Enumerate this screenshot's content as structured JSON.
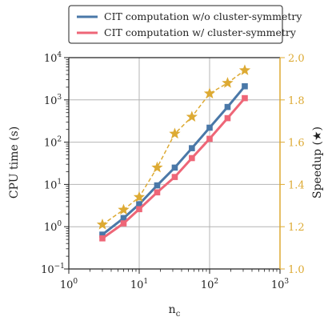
{
  "chart_data": {
    "type": "line",
    "x_label_base": "n",
    "x_label_sub": "c",
    "ylabel_left": "CPU time (s)",
    "ylabel_right": "Speedup (★)",
    "x_scale": "log",
    "y_left_scale": "log",
    "y_right_scale": "linear",
    "xlim": [
      1,
      1000
    ],
    "ylim_left": [
      0.1,
      10000
    ],
    "ylim_right": [
      1.0,
      2.0
    ],
    "x_ticks": [
      {
        "value": 1,
        "base": "10",
        "exp": "0"
      },
      {
        "value": 10,
        "base": "10",
        "exp": "1"
      },
      {
        "value": 100,
        "base": "10",
        "exp": "2"
      },
      {
        "value": 1000,
        "base": "10",
        "exp": "3"
      }
    ],
    "y_left_ticks": [
      {
        "value": 0.1,
        "base": "10",
        "exp": "−1"
      },
      {
        "value": 1,
        "base": "10",
        "exp": "0"
      },
      {
        "value": 10,
        "base": "10",
        "exp": "1"
      },
      {
        "value": 100,
        "base": "10",
        "exp": "2"
      },
      {
        "value": 1000,
        "base": "10",
        "exp": "3"
      },
      {
        "value": 10000,
        "base": "10",
        "exp": "4"
      }
    ],
    "y_right_ticks": [
      "1.0",
      "1.2",
      "1.4",
      "1.6",
      "1.8",
      "2.0"
    ],
    "grid": true,
    "legend_position": "top-center, outside plot",
    "series": [
      {
        "name": "CIT computation w/o cluster-symmetry",
        "axis": "left",
        "color": "#4a78a8",
        "marker": "square",
        "linestyle": "solid",
        "x": [
          3,
          6,
          10,
          18,
          32,
          56,
          100,
          180,
          316
        ],
        "values": [
          0.65,
          1.6,
          3.4,
          9.5,
          25,
          72,
          220,
          680,
          2100
        ]
      },
      {
        "name": "CIT computation w/ cluster-symmetry",
        "axis": "left",
        "color": "#ee6677",
        "marker": "square",
        "linestyle": "solid",
        "x": [
          3,
          6,
          10,
          18,
          32,
          56,
          100,
          180,
          316
        ],
        "values": [
          0.53,
          1.2,
          2.6,
          6.5,
          15,
          42,
          120,
          370,
          1100
        ]
      },
      {
        "name": "Speedup",
        "axis": "right",
        "color": "#ddaa33",
        "marker": "star",
        "linestyle": "dashed",
        "x": [
          3,
          6,
          10,
          18,
          32,
          56,
          100,
          180,
          316
        ],
        "values": [
          1.21,
          1.28,
          1.34,
          1.48,
          1.64,
          1.72,
          1.83,
          1.88,
          1.94
        ]
      }
    ]
  }
}
